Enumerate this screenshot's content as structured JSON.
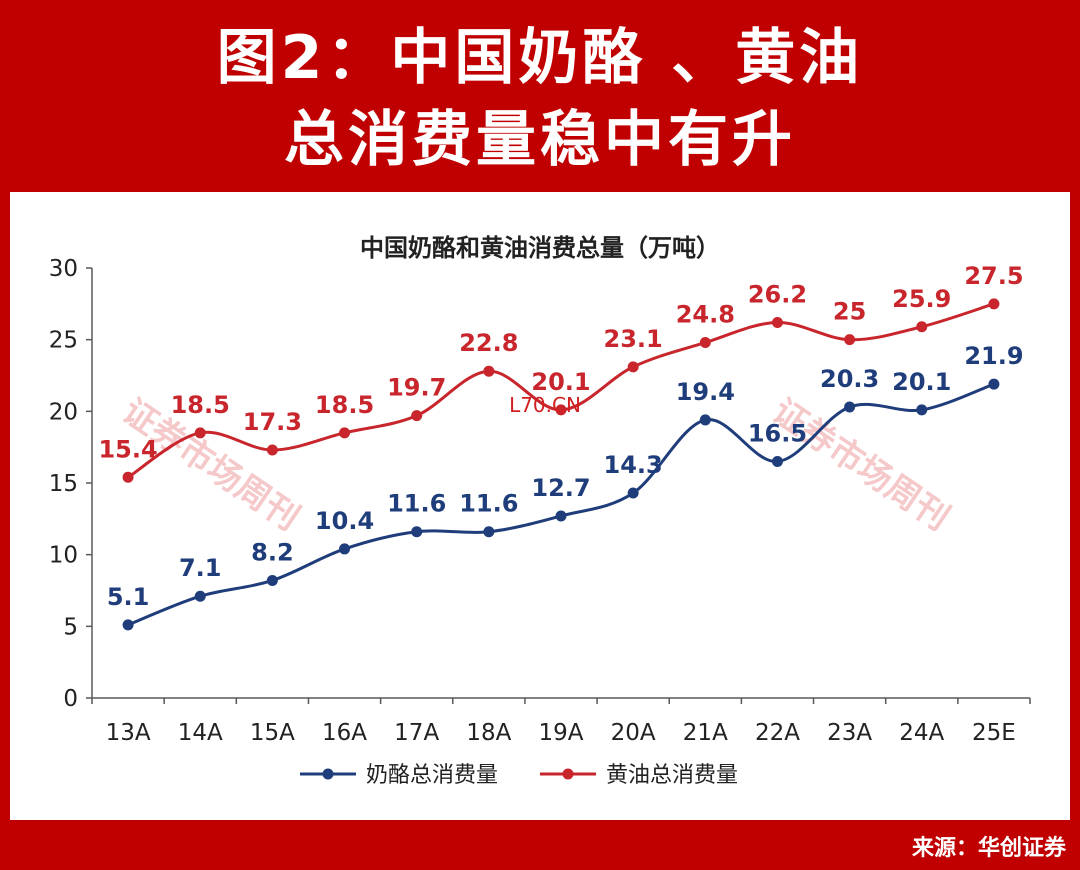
{
  "header": {
    "line1": "图2：中国奶酪 、黄油",
    "line2": "总消费量稳中有升"
  },
  "source": "来源：华创证券",
  "watermarks": [
    "证券市场周刊",
    "证券市场周刊"
  ],
  "overlay_text": "L70.CN",
  "colors": {
    "background": "#c00000",
    "cheese": "#1f3d7a",
    "butter": "#c8262c",
    "axis": "#595959"
  },
  "chart_data": {
    "type": "line",
    "title": "中国奶酪和黄油消费总量（万吨）",
    "categories": [
      "13A",
      "14A",
      "15A",
      "16A",
      "17A",
      "18A",
      "19A",
      "20A",
      "21A",
      "22A",
      "23A",
      "24A",
      "25E"
    ],
    "series": [
      {
        "name": "奶酪总消费量",
        "color": "#1f3d7a",
        "values": [
          5.1,
          7.1,
          8.2,
          10.4,
          11.6,
          11.6,
          12.7,
          14.3,
          19.4,
          16.5,
          20.3,
          20.1,
          21.9
        ]
      },
      {
        "name": "黄油总消费量",
        "color": "#c8262c",
        "values": [
          15.4,
          18.5,
          17.3,
          18.5,
          19.7,
          22.8,
          20.1,
          23.1,
          24.8,
          26.2,
          25,
          25.9,
          27.5
        ]
      }
    ],
    "ylim": [
      0,
      30
    ],
    "yticks": [
      0,
      5,
      10,
      15,
      20,
      25,
      30
    ],
    "legend": "bottom",
    "grid": false
  }
}
